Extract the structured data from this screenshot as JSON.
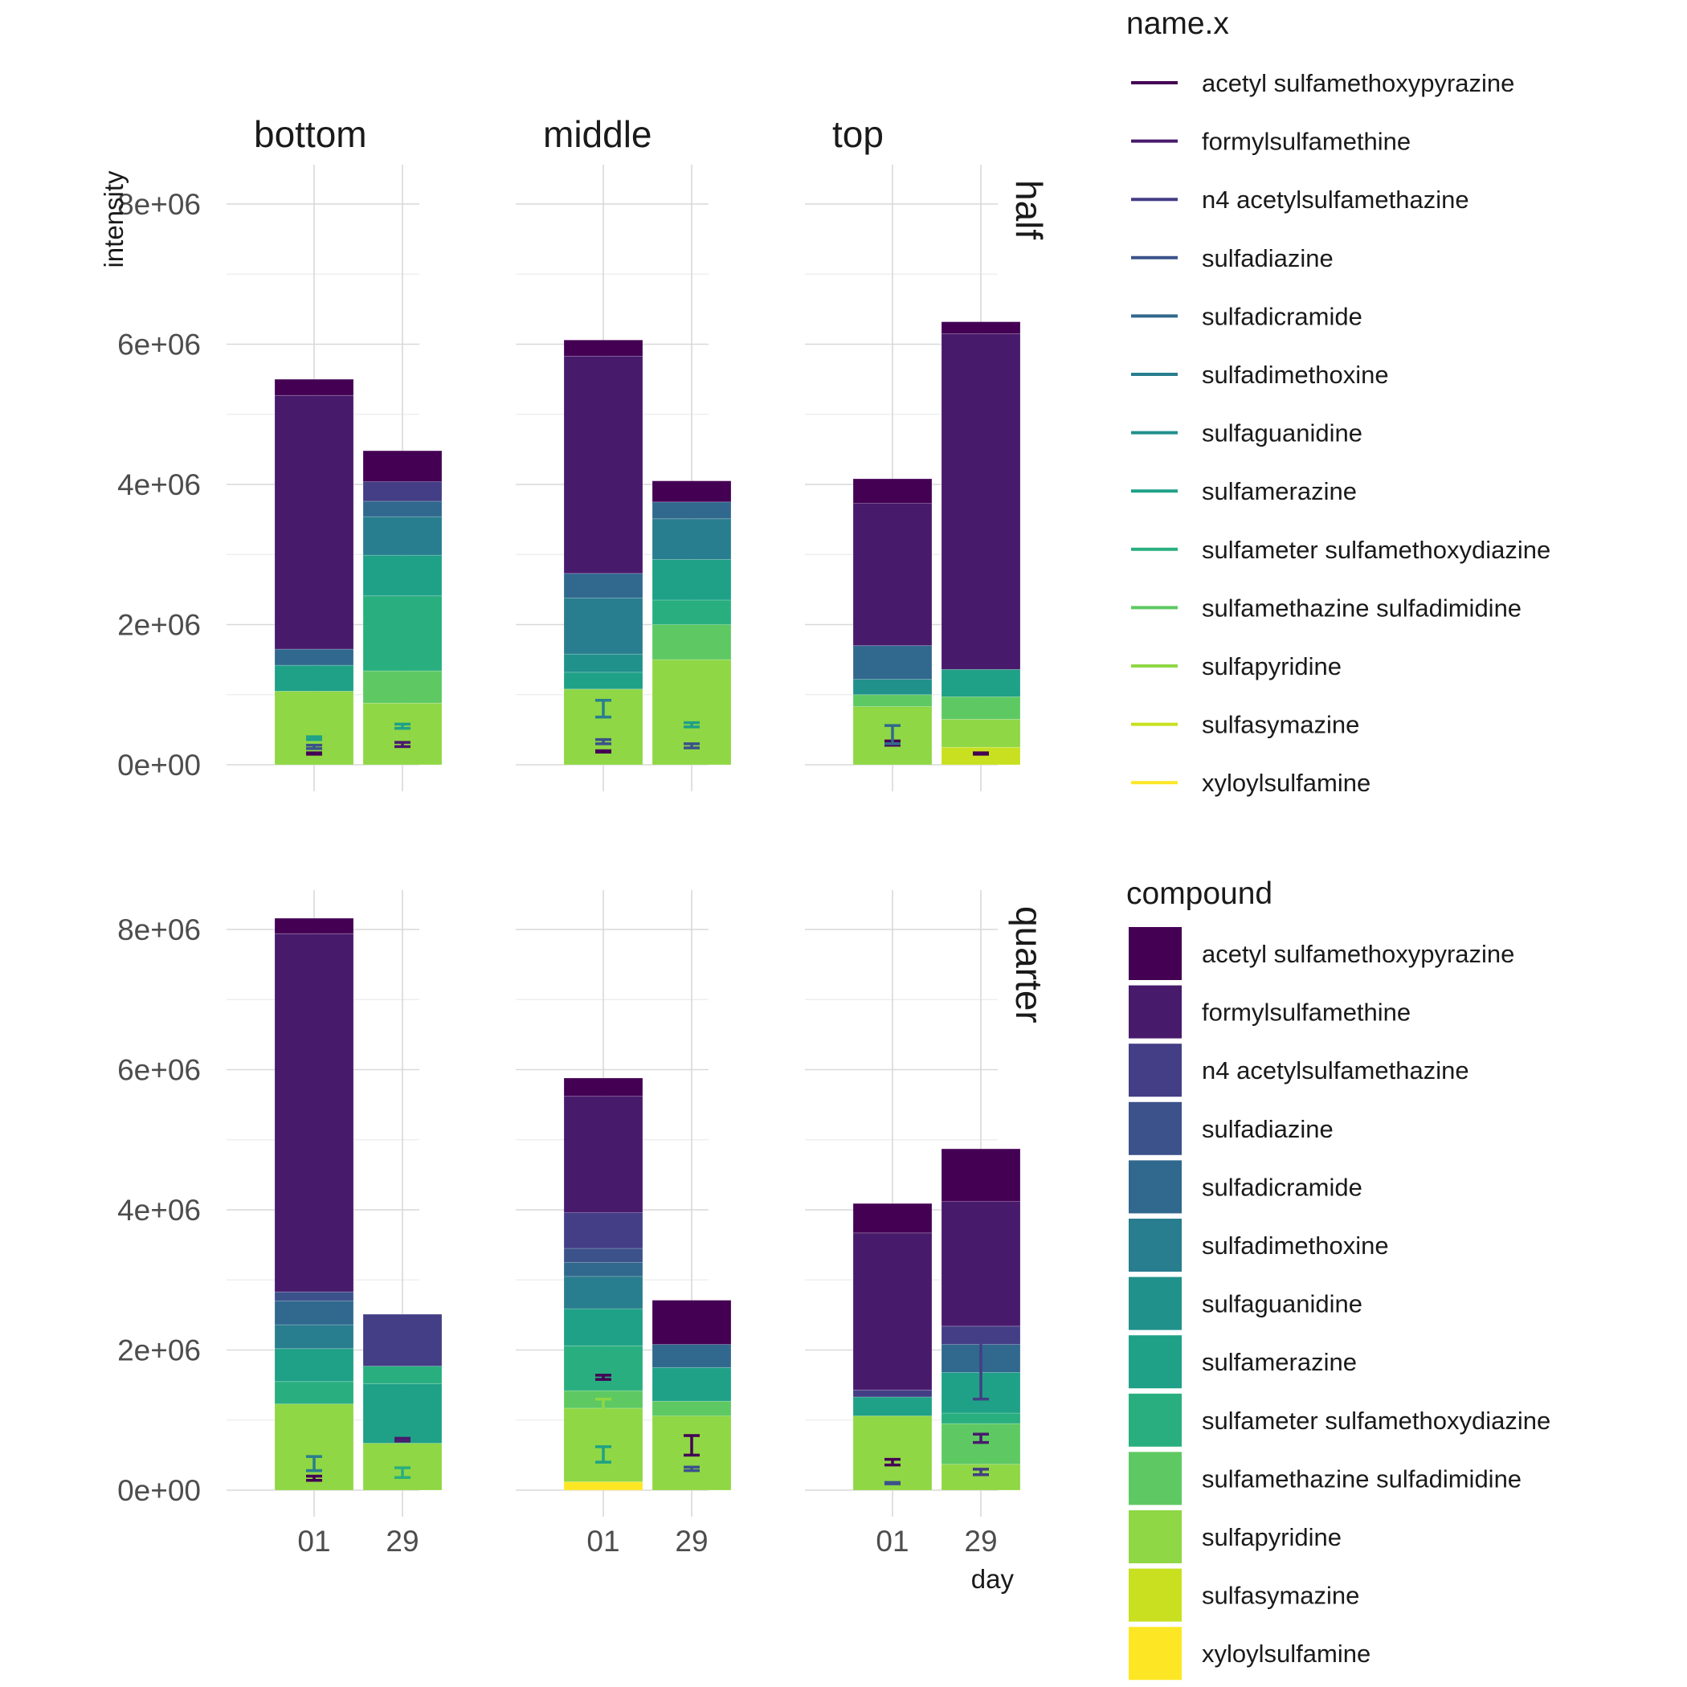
{
  "chart_data": {
    "type": "bar",
    "stacked": true,
    "facet_columns": [
      "bottom",
      "middle",
      "top"
    ],
    "facet_rows": [
      "half",
      "quarter"
    ],
    "categories": [
      "01",
      "29"
    ],
    "xlabel": "day",
    "ylabel": "intensity",
    "ylim": [
      0,
      8600000
    ],
    "yticks": [
      0,
      2000000,
      4000000,
      6000000,
      8000000
    ],
    "ytick_labels": [
      "0e+00",
      "2e+06",
      "4e+06",
      "6e+06",
      "8e+06"
    ],
    "grid": true,
    "legend_position": "right",
    "compounds": [
      "acetyl sulfamethoxypyrazine",
      "formylsulfamethine",
      "n4 acetylsulfamethazine",
      "sulfadiazine",
      "sulfadicramide",
      "sulfadimethoxine",
      "sulfaguanidine",
      "sulfamerazine",
      "sulfameter sulfamethoxydiazine",
      "sulfamethazine sulfadimidine",
      "sulfapyridine",
      "sulfasymazine",
      "xyloylsulfamine"
    ],
    "colors": [
      "#440154",
      "#481a6c",
      "#433e85",
      "#3b528b",
      "#31688e",
      "#287d8e",
      "#21918c",
      "#1fa187",
      "#29af7f",
      "#5ec962",
      "#8fd744",
      "#c8e020",
      "#fde725"
    ],
    "legend_fill_title": "compound",
    "legend_line_title": "name.x",
    "panels": [
      {
        "row": "half",
        "col": "bottom",
        "bars": [
          {
            "day": "01",
            "stack": [
              {
                "compound": "sulfapyridine",
                "value": 1050000
              },
              {
                "compound": "sulfamerazine",
                "value": 370000
              },
              {
                "compound": "sulfadicramide",
                "value": 230000
              },
              {
                "compound": "formylsulfamethine",
                "value": 3620000
              },
              {
                "compound": "acetyl sulfamethoxypyrazine",
                "value": 230000
              }
            ],
            "errorbars": [
              {
                "compound": "acetyl sulfamethoxypyrazine",
                "ymin": 150000,
                "ymax": 170000
              },
              {
                "compound": "sulfadiazine",
                "ymin": 230000,
                "ymax": 280000
              },
              {
                "compound": "sulfamerazine",
                "ymin": 360000,
                "ymax": 400000
              }
            ]
          },
          {
            "day": "29",
            "stack": [
              {
                "compound": "sulfapyridine",
                "value": 880000
              },
              {
                "compound": "sulfamethazine sulfadimidine",
                "value": 460000
              },
              {
                "compound": "sulfameter sulfamethoxydiazine",
                "value": 1070000
              },
              {
                "compound": "sulfamerazine",
                "value": 580000
              },
              {
                "compound": "sulfadimethoxine",
                "value": 550000
              },
              {
                "compound": "sulfadicramide",
                "value": 220000
              },
              {
                "compound": "n4 acetylsulfamethazine",
                "value": 280000
              },
              {
                "compound": "acetyl sulfamethoxypyrazine",
                "value": 440000
              }
            ],
            "errorbars": [
              {
                "compound": "formylsulfamethine",
                "ymin": 260000,
                "ymax": 320000
              },
              {
                "compound": "sulfamerazine",
                "ymin": 520000,
                "ymax": 580000
              }
            ]
          }
        ]
      },
      {
        "row": "half",
        "col": "middle",
        "bars": [
          {
            "day": "01",
            "stack": [
              {
                "compound": "sulfapyridine",
                "value": 1080000
              },
              {
                "compound": "sulfamerazine",
                "value": 240000
              },
              {
                "compound": "sulfaguanidine",
                "value": 260000
              },
              {
                "compound": "sulfadimethoxine",
                "value": 800000
              },
              {
                "compound": "sulfadicramide",
                "value": 350000
              },
              {
                "compound": "formylsulfamethine",
                "value": 3100000
              },
              {
                "compound": "acetyl sulfamethoxypyrazine",
                "value": 230000
              }
            ],
            "errorbars": [
              {
                "compound": "acetyl sulfamethoxypyrazine",
                "ymin": 180000,
                "ymax": 200000
              },
              {
                "compound": "sulfadiazine",
                "ymin": 300000,
                "ymax": 360000
              },
              {
                "compound": "sulfadimethoxine",
                "ymin": 680000,
                "ymax": 920000
              }
            ]
          },
          {
            "day": "29",
            "stack": [
              {
                "compound": "sulfapyridine",
                "value": 1500000
              },
              {
                "compound": "sulfamethazine sulfadimidine",
                "value": 500000
              },
              {
                "compound": "sulfameter sulfamethoxydiazine",
                "value": 350000
              },
              {
                "compound": "sulfamerazine",
                "value": 580000
              },
              {
                "compound": "sulfadimethoxine",
                "value": 580000
              },
              {
                "compound": "sulfadicramide",
                "value": 240000
              },
              {
                "compound": "acetyl sulfamethoxypyrazine",
                "value": 300000
              }
            ],
            "errorbars": [
              {
                "compound": "sulfadiazine",
                "ymin": 240000,
                "ymax": 300000
              },
              {
                "compound": "sulfamerazine",
                "ymin": 540000,
                "ymax": 600000
              }
            ]
          }
        ]
      },
      {
        "row": "half",
        "col": "top",
        "bars": [
          {
            "day": "01",
            "stack": [
              {
                "compound": "sulfapyridine",
                "value": 830000
              },
              {
                "compound": "sulfamethazine sulfadimidine",
                "value": 170000
              },
              {
                "compound": "sulfaguanidine",
                "value": 220000
              },
              {
                "compound": "sulfadicramide",
                "value": 480000
              },
              {
                "compound": "formylsulfamethine",
                "value": 2030000
              },
              {
                "compound": "acetyl sulfamethoxypyrazine",
                "value": 350000
              }
            ],
            "errorbars": [
              {
                "compound": "acetyl sulfamethoxypyrazine",
                "ymin": 280000,
                "ymax": 340000
              },
              {
                "compound": "sulfadicramide",
                "ymin": 300000,
                "ymax": 560000
              }
            ]
          },
          {
            "day": "29",
            "stack": [
              {
                "compound": "sulfasymazine",
                "value": 250000
              },
              {
                "compound": "sulfapyridine",
                "value": 400000
              },
              {
                "compound": "sulfamethazine sulfadimidine",
                "value": 320000
              },
              {
                "compound": "sulfamerazine",
                "value": 390000
              },
              {
                "compound": "formylsulfamethine",
                "value": 4790000
              },
              {
                "compound": "acetyl sulfamethoxypyrazine",
                "value": 170000
              }
            ],
            "errorbars": [
              {
                "compound": "acetyl sulfamethoxypyrazine",
                "ymin": 150000,
                "ymax": 170000
              }
            ]
          }
        ]
      },
      {
        "row": "quarter",
        "col": "bottom",
        "bars": [
          {
            "day": "01",
            "stack": [
              {
                "compound": "sulfapyridine",
                "value": 1230000
              },
              {
                "compound": "sulfameter sulfamethoxydiazine",
                "value": 320000
              },
              {
                "compound": "sulfamerazine",
                "value": 470000
              },
              {
                "compound": "sulfadimethoxine",
                "value": 340000
              },
              {
                "compound": "sulfadicramide",
                "value": 340000
              },
              {
                "compound": "sulfadiazine",
                "value": 130000
              },
              {
                "compound": "formylsulfamethine",
                "value": 5110000
              },
              {
                "compound": "acetyl sulfamethoxypyrazine",
                "value": 220000
              }
            ],
            "errorbars": [
              {
                "compound": "acetyl sulfamethoxypyrazine",
                "ymin": 140000,
                "ymax": 200000
              },
              {
                "compound": "sulfadimethoxine",
                "ymin": 280000,
                "ymax": 480000
              }
            ]
          },
          {
            "day": "29",
            "stack": [
              {
                "compound": "sulfapyridine",
                "value": 670000
              },
              {
                "compound": "sulfamerazine",
                "value": 850000
              },
              {
                "compound": "sulfameter sulfamethoxydiazine",
                "value": 250000
              },
              {
                "compound": "n4 acetylsulfamethazine",
                "value": 740000
              }
            ],
            "errorbars": [
              {
                "compound": "formylsulfamethine",
                "ymin": 700000,
                "ymax": 740000
              },
              {
                "compound": "sulfameter sulfamethoxydiazine",
                "ymin": 180000,
                "ymax": 320000
              }
            ]
          }
        ]
      },
      {
        "row": "quarter",
        "col": "middle",
        "bars": [
          {
            "day": "01",
            "stack": [
              {
                "compound": "xyloylsulfamine",
                "value": 120000
              },
              {
                "compound": "sulfapyridine",
                "value": 1050000
              },
              {
                "compound": "sulfamethazine sulfadimidine",
                "value": 250000
              },
              {
                "compound": "sulfameter sulfamethoxydiazine",
                "value": 640000
              },
              {
                "compound": "sulfamerazine",
                "value": 530000
              },
              {
                "compound": "sulfadimethoxine",
                "value": 460000
              },
              {
                "compound": "sulfadicramide",
                "value": 200000
              },
              {
                "compound": "sulfadiazine",
                "value": 200000
              },
              {
                "compound": "n4 acetylsulfamethazine",
                "value": 510000
              },
              {
                "compound": "formylsulfamethine",
                "value": 1660000
              },
              {
                "compound": "acetyl sulfamethoxypyrazine",
                "value": 260000
              }
            ],
            "errorbars": [
              {
                "compound": "acetyl sulfamethoxypyrazine",
                "ymin": 1580000,
                "ymax": 1640000
              },
              {
                "compound": "sulfapyridine",
                "ymin": 1100000,
                "ymax": 1300000
              },
              {
                "compound": "sulfamerazine",
                "ymin": 400000,
                "ymax": 620000
              }
            ]
          },
          {
            "day": "29",
            "stack": [
              {
                "compound": "sulfapyridine",
                "value": 1060000
              },
              {
                "compound": "sulfamethazine sulfadimidine",
                "value": 210000
              },
              {
                "compound": "sulfamerazine",
                "value": 480000
              },
              {
                "compound": "sulfadicramide",
                "value": 330000
              },
              {
                "compound": "acetyl sulfamethoxypyrazine",
                "value": 630000
              }
            ],
            "errorbars": [
              {
                "compound": "acetyl sulfamethoxypyrazine",
                "ymin": 500000,
                "ymax": 780000
              },
              {
                "compound": "sulfadiazine",
                "ymin": 280000,
                "ymax": 330000
              }
            ]
          }
        ]
      },
      {
        "row": "quarter",
        "col": "top",
        "bars": [
          {
            "day": "01",
            "stack": [
              {
                "compound": "sulfapyridine",
                "value": 1060000
              },
              {
                "compound": "sulfamerazine",
                "value": 270000
              },
              {
                "compound": "n4 acetylsulfamethazine",
                "value": 100000
              },
              {
                "compound": "formylsulfamethine",
                "value": 2240000
              },
              {
                "compound": "acetyl sulfamethoxypyrazine",
                "value": 420000
              }
            ],
            "errorbars": [
              {
                "compound": "acetyl sulfamethoxypyrazine",
                "ymin": 360000,
                "ymax": 440000
              },
              {
                "compound": "sulfadiazine",
                "ymin": 90000,
                "ymax": 110000
              }
            ]
          },
          {
            "day": "29",
            "stack": [
              {
                "compound": "sulfapyridine",
                "value": 370000
              },
              {
                "compound": "sulfamethazine sulfadimidine",
                "value": 580000
              },
              {
                "compound": "sulfameter sulfamethoxydiazine",
                "value": 150000
              },
              {
                "compound": "sulfamerazine",
                "value": 580000
              },
              {
                "compound": "sulfadicramide",
                "value": 400000
              },
              {
                "compound": "n4 acetylsulfamethazine",
                "value": 260000
              },
              {
                "compound": "formylsulfamethine",
                "value": 1780000
              },
              {
                "compound": "acetyl sulfamethoxypyrazine",
                "value": 750000
              }
            ],
            "errorbars": [
              {
                "compound": "n4 acetylsulfamethazine",
                "ymin": 1300000,
                "ymax": 2220000
              },
              {
                "compound": "formylsulfamethine",
                "ymin": 680000,
                "ymax": 800000
              },
              {
                "compound": "n4 acetylsulfamethazine",
                "ymin": 220000,
                "ymax": 300000
              }
            ]
          }
        ]
      }
    ]
  }
}
